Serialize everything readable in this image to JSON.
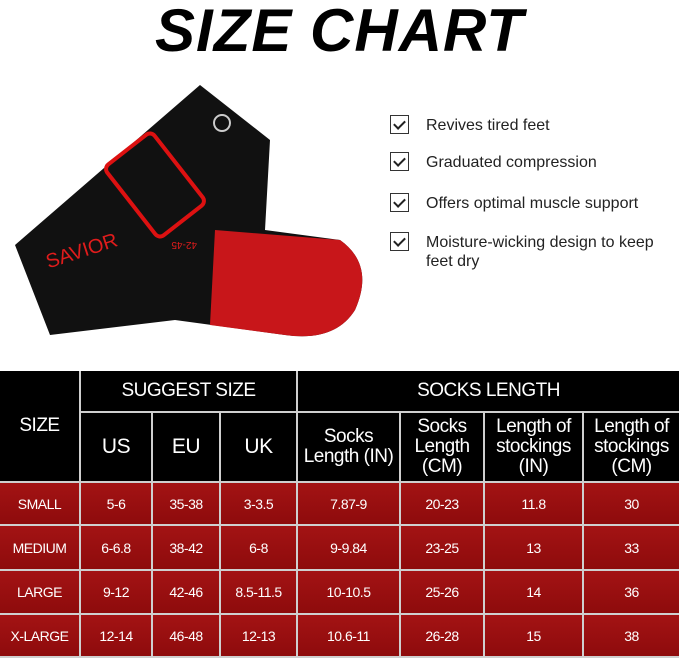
{
  "title": "SIZE CHART",
  "brand_on_sock": "SAVIOR",
  "sock_size_label": "42-45",
  "colors": {
    "accent": "#c8161a",
    "row_bg": "#9b0f10",
    "header_bg": "#000000"
  },
  "features": [
    "Revives tired feet",
    "Graduated compression",
    "Offers optimal muscle support",
    "Moisture-wicking design to keep feet dry"
  ],
  "table": {
    "size_header": "SIZE",
    "suggest_header": "SUGGEST SIZE",
    "length_header": "SOCKS LENGTH",
    "subheaders": [
      "US",
      "EU",
      "UK",
      "Socks Length (IN)",
      "Socks Length (CM)",
      "Length of stockings (IN)",
      "Length of stockings (CM)"
    ],
    "rows": [
      [
        "SMALL",
        "5-6",
        "35-38",
        "3-3.5",
        "7.87-9",
        "20-23",
        "11.8",
        "30"
      ],
      [
        "MEDIUM",
        "6-6.8",
        "38-42",
        "6-8",
        "9-9.84",
        "23-25",
        "13",
        "33"
      ],
      [
        "LARGE",
        "9-12",
        "42-46",
        "8.5-11.5",
        "10-10.5",
        "25-26",
        "14",
        "36"
      ],
      [
        "X-LARGE",
        "12-14",
        "46-48",
        "12-13",
        "10.6-11",
        "26-28",
        "15",
        "38"
      ]
    ]
  }
}
